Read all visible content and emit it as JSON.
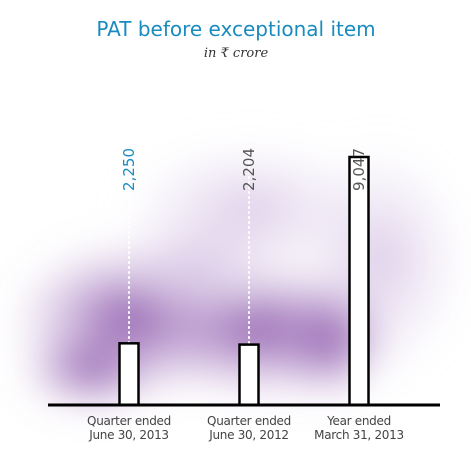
{
  "chart_data": {
    "type": "bar",
    "title": "PAT before exceptional item",
    "subtitle": "in ₹ crore",
    "categories": [
      "Quarter ended June 30, 2013",
      "Quarter ended June 30, 2012",
      "Year ended March 31, 2013"
    ],
    "values": [
      2250,
      2204,
      9047
    ],
    "value_labels": [
      "2,250",
      "2,204",
      "9,047"
    ],
    "value_label_colors": [
      "#1a8bbf",
      "#555555",
      "#555555"
    ],
    "color": "#ffffff",
    "title_color": "#1a8bbf"
  }
}
